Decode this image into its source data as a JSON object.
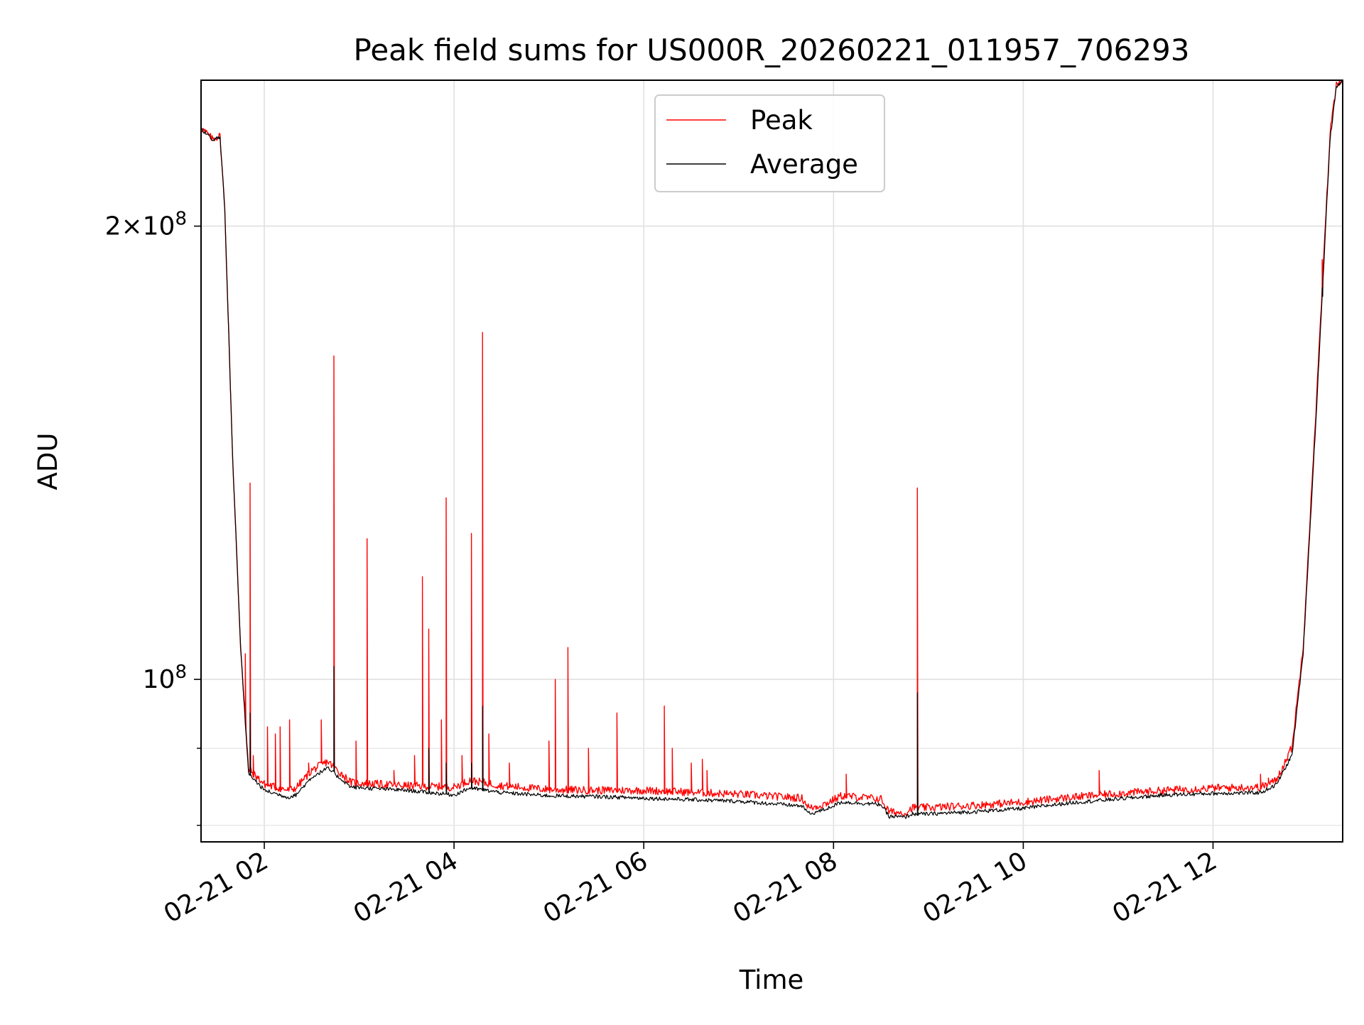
{
  "chart_data": {
    "type": "line",
    "title": "Peak field sums for US000R_20260221_011957_706293",
    "xlabel": "Time",
    "ylabel": "ADU",
    "y_scale": "log",
    "grid": true,
    "legend_position": "top-center",
    "xlim": [
      "02-21 01:20",
      "02-21 13:22"
    ],
    "ylim": [
      78000000,
      250000000
    ],
    "x_ticks": [
      "02-21 02",
      "02-21 04",
      "02-21 06",
      "02-21 08",
      "02-21 10",
      "02-21 12"
    ],
    "x_tick_times": [
      "02:00",
      "04:00",
      "06:00",
      "08:00",
      "10:00",
      "12:00"
    ],
    "y_ticks": [
      {
        "value": 100000000,
        "mantissa": "",
        "exponent": "8"
      },
      {
        "value": 200000000,
        "mantissa": "2",
        "exponent": "8"
      }
    ],
    "y_minor_ticks": [
      80000000,
      90000000
    ],
    "series": [
      {
        "name": "Peak",
        "color": "#ff0000",
        "baseline": [
          [
            "01:20",
            232000000
          ],
          [
            "01:27",
            228000000
          ],
          [
            "01:32",
            229000000
          ],
          [
            "01:35",
            205000000
          ],
          [
            "01:40",
            140000000
          ],
          [
            "01:45",
            105000000
          ],
          [
            "01:50",
            87000000
          ],
          [
            "02:00",
            85000000
          ],
          [
            "02:15",
            84200000
          ],
          [
            "02:20",
            84500000
          ],
          [
            "02:30",
            86800000
          ],
          [
            "02:40",
            88000000
          ],
          [
            "02:55",
            85200000
          ],
          [
            "03:30",
            84800000
          ],
          [
            "04:00",
            84600000
          ],
          [
            "04:10",
            85500000
          ],
          [
            "04:30",
            84800000
          ],
          [
            "05:00",
            84300000
          ],
          [
            "05:30",
            84200000
          ],
          [
            "06:00",
            84200000
          ],
          [
            "07:00",
            83700000
          ],
          [
            "07:40",
            83200000
          ],
          [
            "07:45",
            81900000
          ],
          [
            "07:55",
            82500000
          ],
          [
            "08:05",
            83500000
          ],
          [
            "08:30",
            83100000
          ],
          [
            "08:35",
            81500000
          ],
          [
            "08:45",
            81300000
          ],
          [
            "08:50",
            82000000
          ],
          [
            "09:00",
            82000000
          ],
          [
            "09:30",
            82300000
          ],
          [
            "10:00",
            82700000
          ],
          [
            "10:30",
            83300000
          ],
          [
            "11:00",
            83800000
          ],
          [
            "11:30",
            84200000
          ],
          [
            "12:00",
            84500000
          ],
          [
            "12:30",
            84600000
          ],
          [
            "12:40",
            85500000
          ],
          [
            "12:50",
            90000000
          ],
          [
            "12:57",
            105000000
          ],
          [
            "13:05",
            150000000
          ],
          [
            "13:10",
            190000000
          ],
          [
            "13:14",
            230000000
          ],
          [
            "13:18",
            248000000
          ],
          [
            "13:22",
            250000000
          ]
        ],
        "spikes": [
          [
            "01:51",
            135000000
          ],
          [
            "01:48",
            104000000
          ],
          [
            "01:53",
            89000000
          ],
          [
            "02:02",
            93000000
          ],
          [
            "02:07",
            92000000
          ],
          [
            "02:10",
            93000000
          ],
          [
            "02:16",
            94000000
          ],
          [
            "02:28",
            88000000
          ],
          [
            "02:36",
            94000000
          ],
          [
            "02:44",
            164000000
          ],
          [
            "02:58",
            91000000
          ],
          [
            "03:05",
            124000000
          ],
          [
            "03:22",
            87000000
          ],
          [
            "03:35",
            89000000
          ],
          [
            "03:40",
            117000000
          ],
          [
            "03:44",
            108000000
          ],
          [
            "03:52",
            94000000
          ],
          [
            "03:55",
            132000000
          ],
          [
            "04:05",
            89000000
          ],
          [
            "04:11",
            125000000
          ],
          [
            "04:18",
            170000000
          ],
          [
            "04:22",
            92000000
          ],
          [
            "04:35",
            88000000
          ],
          [
            "05:00",
            91000000
          ],
          [
            "05:04",
            100000000
          ],
          [
            "05:12",
            105000000
          ],
          [
            "05:25",
            90000000
          ],
          [
            "05:43",
            95000000
          ],
          [
            "06:13",
            96000000
          ],
          [
            "06:18",
            90000000
          ],
          [
            "06:30",
            88000000
          ],
          [
            "06:37",
            88500000
          ],
          [
            "06:40",
            87000000
          ],
          [
            "08:08",
            86500000
          ],
          [
            "08:53",
            134000000
          ],
          [
            "10:48",
            87000000
          ],
          [
            "12:30",
            86500000
          ],
          [
            "12:35",
            86000000
          ],
          [
            "13:09",
            190000000
          ]
        ]
      },
      {
        "name": "Average",
        "color": "#000000",
        "baseline": [
          [
            "01:20",
            232000000
          ],
          [
            "01:27",
            228000000
          ],
          [
            "01:32",
            229000000
          ],
          [
            "01:35",
            205000000
          ],
          [
            "01:40",
            140000000
          ],
          [
            "01:45",
            105000000
          ],
          [
            "01:50",
            86500000
          ],
          [
            "02:00",
            84300000
          ],
          [
            "02:15",
            83400000
          ],
          [
            "02:20",
            83700000
          ],
          [
            "02:30",
            86000000
          ],
          [
            "02:40",
            87200000
          ],
          [
            "02:55",
            84700000
          ],
          [
            "03:30",
            84300000
          ],
          [
            "04:00",
            83700000
          ],
          [
            "04:10",
            84600000
          ],
          [
            "04:30",
            84000000
          ],
          [
            "05:00",
            83600000
          ],
          [
            "05:30",
            83500000
          ],
          [
            "06:00",
            83300000
          ],
          [
            "07:00",
            82900000
          ],
          [
            "07:40",
            82300000
          ],
          [
            "07:45",
            81300000
          ],
          [
            "07:55",
            81900000
          ],
          [
            "08:05",
            82800000
          ],
          [
            "08:30",
            82500000
          ],
          [
            "08:35",
            81000000
          ],
          [
            "08:45",
            80900000
          ],
          [
            "08:50",
            81300000
          ],
          [
            "09:00",
            81300000
          ],
          [
            "09:30",
            81600000
          ],
          [
            "10:00",
            82000000
          ],
          [
            "10:30",
            82700000
          ],
          [
            "11:00",
            83200000
          ],
          [
            "11:30",
            83700000
          ],
          [
            "12:00",
            83900000
          ],
          [
            "12:30",
            84000000
          ],
          [
            "12:40",
            85000000
          ],
          [
            "12:50",
            89000000
          ],
          [
            "12:57",
            104000000
          ],
          [
            "13:05",
            148000000
          ],
          [
            "13:10",
            188000000
          ],
          [
            "13:14",
            228000000
          ],
          [
            "13:18",
            247000000
          ],
          [
            "13:22",
            250000000
          ]
        ],
        "spikes": [
          [
            "01:51",
            95000000
          ],
          [
            "02:44",
            102000000
          ],
          [
            "03:44",
            90000000
          ],
          [
            "03:55",
            88000000
          ],
          [
            "04:11",
            88000000
          ],
          [
            "04:18",
            96000000
          ],
          [
            "08:53",
            98000000
          ],
          [
            "13:09",
            182000000
          ]
        ]
      }
    ]
  }
}
